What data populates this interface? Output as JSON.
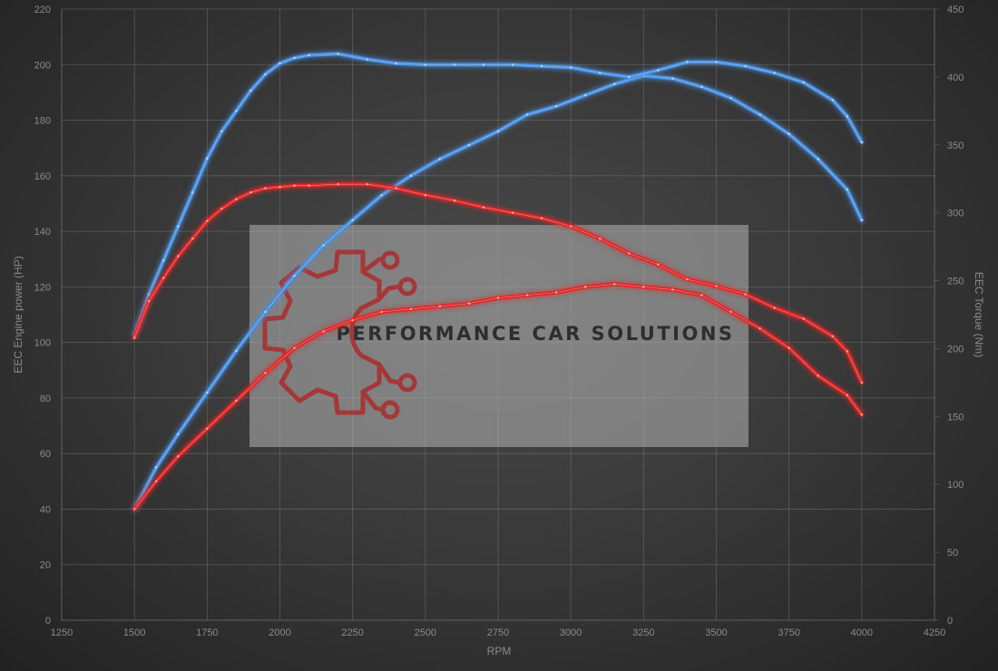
{
  "watermark": {
    "text": "PERFORMANCE CAR SOLUTIONS",
    "logo_icon": "gear-circuit-icon"
  },
  "chart_data": {
    "type": "line",
    "title": "",
    "xlabel": "RPM",
    "ylabel_left": "EEC Engine power (HP)",
    "ylabel_right": "EEC Torque (Nm)",
    "xlim": [
      1250,
      4250
    ],
    "ylim_left": [
      0,
      220
    ],
    "ylim_right": [
      0,
      450
    ],
    "x_ticks": [
      1250,
      1500,
      1750,
      2000,
      2250,
      2500,
      2750,
      3000,
      3250,
      3500,
      3750,
      4000,
      4250
    ],
    "y_left_ticks": [
      0,
      20,
      40,
      60,
      80,
      100,
      120,
      140,
      160,
      180,
      200,
      220
    ],
    "y_right_ticks": [
      0,
      50,
      100,
      150,
      200,
      250,
      300,
      350,
      400,
      450
    ],
    "grid": true,
    "colors": {
      "tuned": "#4a8fe0",
      "stock": "#e02828"
    },
    "series": [
      {
        "axis": "left",
        "color": "#4a8fe0",
        "x": [
          1500,
          1575,
          1650,
          1750,
          1850,
          1950,
          2050,
          2150,
          2250,
          2350,
          2450,
          2550,
          2650,
          2750,
          2850,
          2950,
          3050,
          3150,
          3250,
          3350,
          3450,
          3550,
          3650,
          3750,
          3850,
          3950,
          4000
        ],
        "y": [
          40,
          55,
          67,
          82,
          97,
          111,
          124,
          135,
          144,
          153,
          160,
          166,
          171,
          176,
          182,
          185,
          189,
          193,
          196,
          195,
          192,
          188,
          182,
          175,
          166,
          155,
          144
        ]
      },
      {
        "axis": "right",
        "color": "#4a8fe0",
        "x": [
          1500,
          1550,
          1600,
          1650,
          1700,
          1750,
          1800,
          1850,
          1900,
          1950,
          2000,
          2050,
          2100,
          2200,
          2300,
          2400,
          2500,
          2600,
          2700,
          2800,
          2900,
          3000,
          3100,
          3200,
          3300,
          3400,
          3500,
          3600,
          3700,
          3800,
          3900,
          3950,
          4000
        ],
        "y": [
          210,
          240,
          265,
          290,
          315,
          340,
          360,
          375,
          390,
          402,
          410,
          414,
          416,
          417,
          413,
          410,
          409,
          409,
          409,
          409,
          408,
          407,
          403,
          400,
          405,
          411,
          411,
          408,
          403,
          396,
          383,
          371,
          352
        ]
      },
      {
        "axis": "left",
        "color": "#e02828",
        "x": [
          1500,
          1575,
          1650,
          1750,
          1850,
          1950,
          2050,
          2150,
          2250,
          2350,
          2450,
          2550,
          2650,
          2750,
          2850,
          2950,
          3050,
          3150,
          3250,
          3350,
          3450,
          3550,
          3650,
          3750,
          3850,
          3950,
          4000
        ],
        "y": [
          40,
          50,
          59,
          69,
          79,
          89,
          98,
          104,
          108,
          111,
          112,
          113,
          114,
          116,
          117,
          118,
          120,
          121,
          120,
          119,
          117,
          111,
          105,
          98,
          88,
          81,
          74
        ]
      },
      {
        "axis": "right",
        "color": "#e02828",
        "x": [
          1500,
          1550,
          1600,
          1650,
          1700,
          1750,
          1800,
          1850,
          1900,
          1950,
          2000,
          2050,
          2100,
          2200,
          2300,
          2400,
          2500,
          2600,
          2700,
          2800,
          2900,
          3000,
          3100,
          3200,
          3300,
          3400,
          3500,
          3600,
          3700,
          3800,
          3900,
          3950,
          4000
        ],
        "y": [
          208,
          235,
          252,
          268,
          281,
          294,
          303,
          310,
          315,
          318,
          319,
          320,
          320,
          321,
          321,
          318,
          313,
          309,
          304,
          300,
          296,
          290,
          281,
          270,
          262,
          251,
          246,
          240,
          230,
          222,
          209,
          198,
          175
        ]
      }
    ]
  }
}
